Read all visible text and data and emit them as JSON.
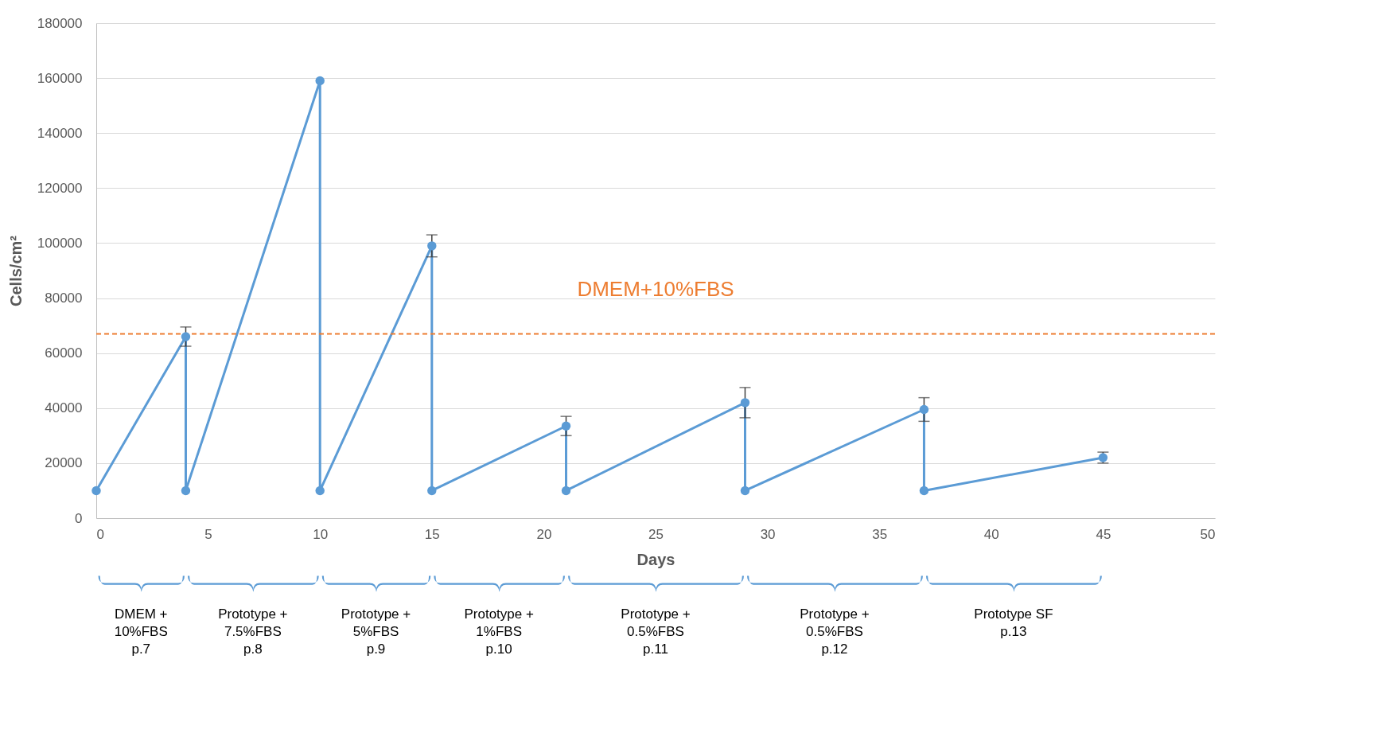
{
  "chart_data": {
    "type": "line",
    "xlabel": "Days",
    "ylabel": "Cells/cm²",
    "x": [
      0,
      4,
      4,
      10,
      10,
      15,
      15,
      21,
      21,
      29,
      29,
      37,
      37,
      45
    ],
    "series": [
      {
        "color": "#5b9bd5",
        "values": [
          10000,
          66000,
          10000,
          159000,
          10000,
          99000,
          10000,
          33500,
          10000,
          42000,
          10000,
          39500,
          10000,
          22000
        ],
        "errors": [
          null,
          3500,
          null,
          null,
          null,
          4000,
          null,
          3500,
          null,
          5500,
          null,
          4300,
          null,
          2000
        ]
      }
    ],
    "xlim": [
      0,
      50
    ],
    "xticks": [
      0,
      5,
      10,
      15,
      20,
      25,
      30,
      35,
      40,
      45,
      50
    ],
    "ylim": [
      0,
      180000
    ],
    "yticks": [
      0,
      20000,
      40000,
      60000,
      80000,
      100000,
      120000,
      140000,
      160000,
      180000
    ],
    "grid": "y",
    "marker": "circle",
    "legend": false,
    "ref_lines": [
      {
        "axis": "y",
        "value": 67000,
        "label": "DMEM+10%FBS",
        "color": "#ed7d31",
        "line_style": "dashed"
      }
    ],
    "annotations": [
      "DMEM +\n10%FBS\np.7",
      "Prototype +\n7.5%FBS\np.8",
      "Prototype +\n5%FBS\np.9",
      "Prototype +\n1%FBS\np.10",
      "Prototype +\n0.5%FBS\np.11",
      "Prototype +\n0.5%FBS\np.12",
      "Prototype SF\np.13"
    ]
  }
}
